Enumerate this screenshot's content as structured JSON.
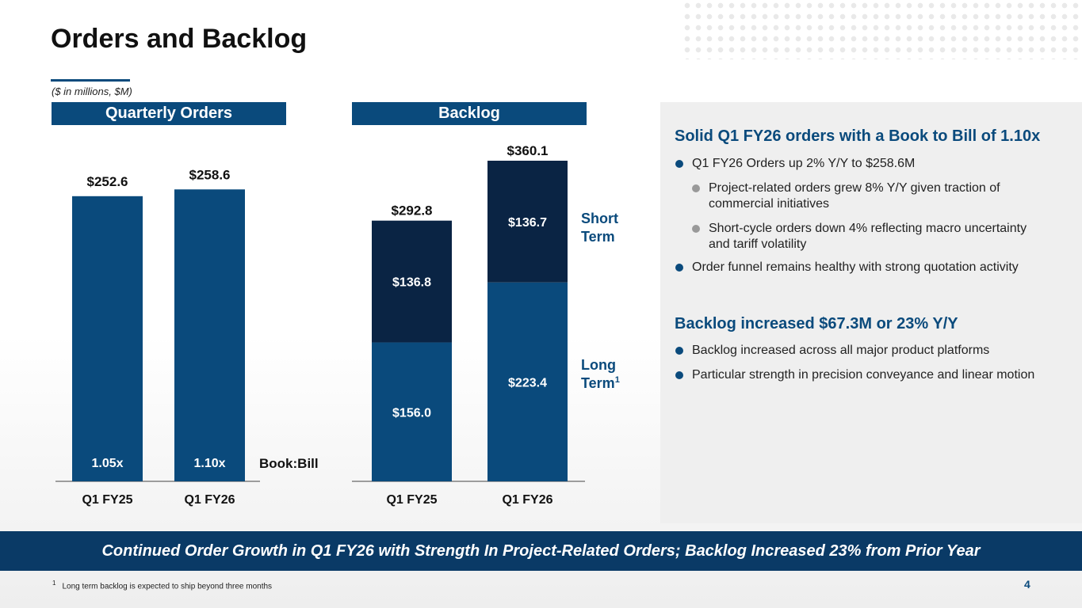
{
  "page": {
    "title": "Orders and Backlog",
    "units": "($ in millions, $M)",
    "page_number": "4",
    "banner": "Continued Order Growth in Q1 FY26 with Strength In Project-Related Orders; Backlog Increased 23% from Prior Year",
    "footnote_marker": "1",
    "footnote": "Long term backlog is expected to ship beyond three months"
  },
  "colors": {
    "primary": "#0a4a7c",
    "dark": "#0a2444",
    "banner": "#0a3a66",
    "panel": "#efefef"
  },
  "chart_data": [
    {
      "type": "bar",
      "title": "Quarterly Orders",
      "categories": [
        "Q1 FY25",
        "Q1 FY26"
      ],
      "values": [
        252.6,
        258.6
      ],
      "value_labels": [
        "$252.6",
        "$258.6"
      ],
      "inner_labels": [
        "1.05x",
        "1.10x"
      ],
      "inner_label_title": "Book:Bill",
      "ylim": [
        0,
        270
      ],
      "xlabel": "",
      "ylabel": ""
    },
    {
      "type": "bar",
      "stacked": true,
      "title": "Backlog",
      "categories": [
        "Q1 FY25",
        "Q1 FY26"
      ],
      "series": [
        {
          "name": "Long Term",
          "footnote_marker": "1",
          "values": [
            156.0,
            223.4
          ],
          "labels": [
            "$156.0",
            "$223.4"
          ]
        },
        {
          "name": "Short Term",
          "values": [
            136.8,
            136.7
          ],
          "labels": [
            "$136.8",
            "$136.7"
          ]
        }
      ],
      "totals": [
        292.8,
        360.1
      ],
      "total_labels": [
        "$292.8",
        "$360.1"
      ],
      "ylim": [
        0,
        390
      ],
      "xlabel": "",
      "ylabel": ""
    }
  ],
  "summary": {
    "orders_heading": "Solid Q1 FY26 orders with a Book to Bill of 1.10x",
    "orders_bullet_1": "Q1 FY26 Orders up 2% Y/Y to $258.6M",
    "orders_sub_1": "Project-related orders grew 8% Y/Y given traction of commercial initiatives",
    "orders_sub_2": "Short-cycle orders down 4% reflecting macro uncertainty and tariff volatility",
    "orders_bullet_2": "Order funnel remains healthy with strong quotation activity",
    "backlog_heading": "Backlog increased $67.3M or 23% Y/Y",
    "backlog_bullet_1": "Backlog increased across all major product platforms",
    "backlog_bullet_2": "Particular strength in precision conveyance and linear motion"
  }
}
